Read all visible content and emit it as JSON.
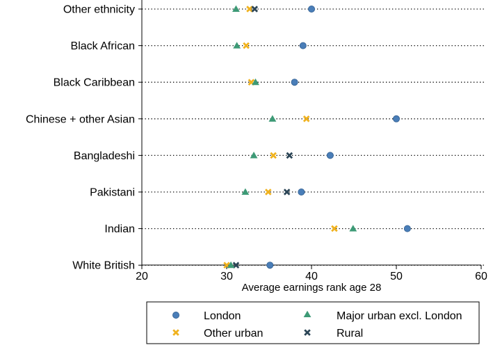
{
  "chart_data": {
    "type": "scatter",
    "orientation": "horizontal-dot-plot",
    "xlabel": "Average earnings rank age 28",
    "xlim": [
      20,
      60
    ],
    "xticks": [
      20,
      30,
      40,
      50,
      60
    ],
    "xtick_labels": [
      "20",
      "30",
      "40",
      "50",
      "60"
    ],
    "categories": [
      "Other ethnicity",
      "Black African",
      "Black Caribbean",
      "Chinese + other Asian",
      "Bangladeshi",
      "Pakistani",
      "Indian",
      "White British"
    ],
    "series": [
      {
        "name": "London",
        "marker": "circle",
        "color": "#4a7eb8",
        "values": [
          40.0,
          39.0,
          38.0,
          50.0,
          42.2,
          38.8,
          51.3,
          35.1
        ]
      },
      {
        "name": "Major urban excl. London",
        "marker": "triangle",
        "color": "#3d9a76",
        "values": [
          31.1,
          31.2,
          33.4,
          35.4,
          33.2,
          32.2,
          44.9,
          30.5
        ]
      },
      {
        "name": "Other urban",
        "marker": "x-cross",
        "color": "#f0b21e",
        "values": [
          32.7,
          32.3,
          32.9,
          39.4,
          35.5,
          34.9,
          42.7,
          30.0
        ]
      },
      {
        "name": "Rural",
        "marker": "x-cross",
        "color": "#2b4556",
        "values": [
          33.3,
          null,
          null,
          null,
          37.4,
          37.1,
          null,
          31.1
        ]
      }
    ],
    "legend": {
      "placement": "bottom",
      "entries": [
        "London",
        "Major urban excl. London",
        "Other urban",
        "Rural"
      ]
    },
    "grid": "dotted horizontal lines per category"
  }
}
